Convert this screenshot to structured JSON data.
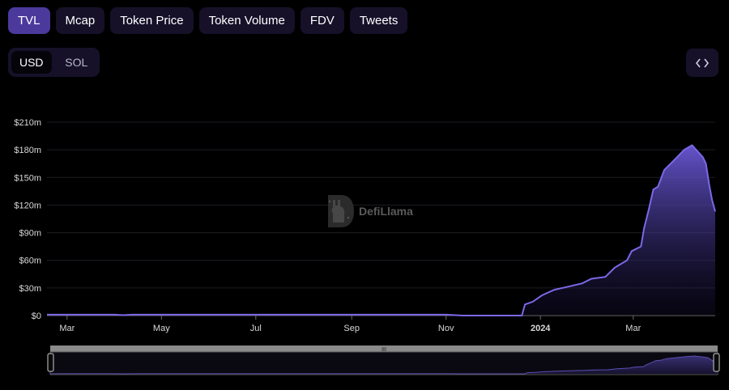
{
  "tabs": [
    {
      "label": "TVL",
      "active": true
    },
    {
      "label": "Mcap",
      "active": false
    },
    {
      "label": "Token Price",
      "active": false
    },
    {
      "label": "Token Volume",
      "active": false
    },
    {
      "label": "FDV",
      "active": false
    },
    {
      "label": "Tweets",
      "active": false
    }
  ],
  "currency_toggle": {
    "selected": "USD",
    "other": "SOL"
  },
  "embed_icon": "code-brackets-icon",
  "watermark": {
    "text": "DefiLlama",
    "icon": "llama-logo-icon"
  },
  "colors": {
    "accent": "#7b68e8",
    "active_tab": "#4b3a9c",
    "tab_bg": "#161129"
  },
  "chart_data": {
    "type": "area",
    "ylim": [
      0,
      210
    ],
    "y_ticks": [
      "$0",
      "$30m",
      "$60m",
      "$90m",
      "$120m",
      "$150m",
      "$180m",
      "$210m"
    ],
    "x_ticks": [
      {
        "label": "Mar",
        "date": "2023-03-01"
      },
      {
        "label": "May",
        "date": "2023-05-01"
      },
      {
        "label": "Jul",
        "date": "2023-07-01"
      },
      {
        "label": "Sep",
        "date": "2023-09-01"
      },
      {
        "label": "Nov",
        "date": "2023-11-01"
      },
      {
        "label": "2024",
        "date": "2024-01-01"
      },
      {
        "label": "Mar",
        "date": "2024-03-01"
      }
    ],
    "grid": true,
    "series": [
      {
        "values_unit": "USD millions",
        "points": [
          [
            "2023-02-16",
            1
          ],
          [
            "2023-04-01",
            1
          ],
          [
            "2023-04-06",
            0.4
          ],
          [
            "2023-04-12",
            1
          ],
          [
            "2023-06-01",
            1
          ],
          [
            "2023-08-01",
            1
          ],
          [
            "2023-10-01",
            1
          ],
          [
            "2023-11-01",
            1
          ],
          [
            "2023-11-12",
            0
          ],
          [
            "2023-12-20",
            0
          ],
          [
            "2023-12-22",
            12
          ],
          [
            "2023-12-27",
            15
          ],
          [
            "2024-01-02",
            22
          ],
          [
            "2024-01-10",
            28
          ],
          [
            "2024-01-18",
            31
          ],
          [
            "2024-01-28",
            35
          ],
          [
            "2024-02-03",
            40
          ],
          [
            "2024-02-12",
            42
          ],
          [
            "2024-02-18",
            52
          ],
          [
            "2024-02-26",
            60
          ],
          [
            "2024-02-29",
            70
          ],
          [
            "2024-03-06",
            75
          ],
          [
            "2024-03-08",
            95
          ],
          [
            "2024-03-11",
            115
          ],
          [
            "2024-03-14",
            137
          ],
          [
            "2024-03-17",
            140
          ],
          [
            "2024-03-21",
            158
          ],
          [
            "2024-03-27",
            168
          ],
          [
            "2024-04-03",
            180
          ],
          [
            "2024-04-08",
            185
          ],
          [
            "2024-04-15",
            172
          ],
          [
            "2024-04-17",
            165
          ],
          [
            "2024-04-19",
            143
          ],
          [
            "2024-04-21",
            125
          ],
          [
            "2024-04-23",
            113
          ]
        ]
      }
    ],
    "range_selector": {
      "handle_label": "III"
    }
  }
}
